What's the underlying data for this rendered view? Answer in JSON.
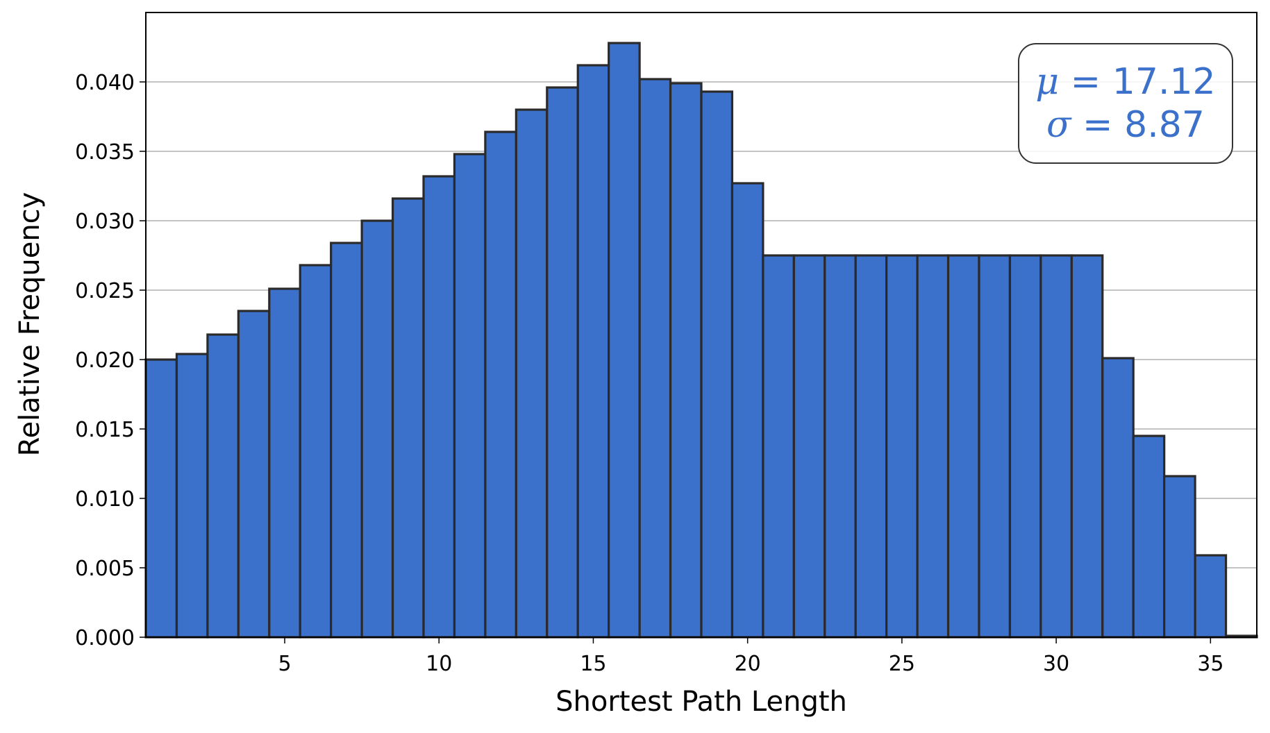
{
  "chart_data": {
    "type": "bar",
    "xlabel": "Shortest Path Length",
    "ylabel": "Relative Frequency",
    "x": [
      1,
      2,
      3,
      4,
      5,
      6,
      7,
      8,
      9,
      10,
      11,
      12,
      13,
      14,
      15,
      16,
      17,
      18,
      19,
      20,
      21,
      22,
      23,
      24,
      25,
      26,
      27,
      28,
      29,
      30,
      31,
      32,
      33,
      34,
      35,
      36
    ],
    "values": [
      0.02,
      0.0204,
      0.0218,
      0.0235,
      0.0251,
      0.0268,
      0.0284,
      0.03,
      0.0316,
      0.0332,
      0.0348,
      0.0364,
      0.038,
      0.0396,
      0.0412,
      0.0428,
      0.0402,
      0.0399,
      0.0393,
      0.0327,
      0.0275,
      0.0275,
      0.0275,
      0.0275,
      0.0275,
      0.0275,
      0.0275,
      0.0275,
      0.0275,
      0.0275,
      0.0275,
      0.0201,
      0.0145,
      0.0116,
      0.0059,
      0.0001
    ],
    "xlim": [
      0.5,
      36.5
    ],
    "ylim": [
      0,
      0.045
    ],
    "xticks": [
      5,
      10,
      15,
      20,
      25,
      30,
      35
    ],
    "xtick_labels": [
      "5",
      "10",
      "15",
      "20",
      "25",
      "30",
      "35"
    ],
    "yticks": [
      0,
      0.005,
      0.01,
      0.015,
      0.02,
      0.025,
      0.03,
      0.035,
      0.04
    ],
    "ytick_labels": [
      "0.000",
      "0.005",
      "0.010",
      "0.015",
      "0.020",
      "0.025",
      "0.030",
      "0.035",
      "0.040"
    ],
    "grid": "horizontal",
    "bar_color": "#3b70cb",
    "edge_color": "#2a2a2a",
    "annotation": {
      "mu_symbol": "μ",
      "mu_text": " = 17.12",
      "sigma_symbol": "σ",
      "sigma_text": " = 8.87",
      "placement": "top-right",
      "color": "#3b70cb"
    }
  }
}
